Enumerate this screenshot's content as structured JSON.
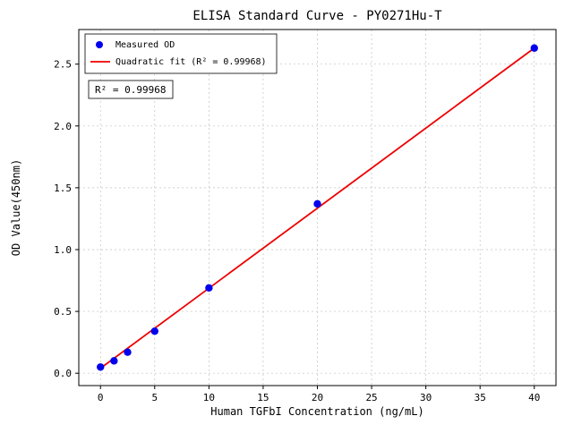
{
  "chart_data": {
    "type": "scatter",
    "title": "ELISA Standard Curve - PY0271Hu-T",
    "xlabel": "Human TGFbI Concentration (ng/mL)",
    "ylabel": "OD Value(450nm)",
    "series": [
      {
        "name": "Measured OD",
        "x": [
          0,
          1.25,
          2.5,
          5,
          10,
          20,
          40
        ],
        "y": [
          0.05,
          0.1,
          0.17,
          0.34,
          0.69,
          1.37,
          2.63
        ]
      }
    ],
    "fit_line": {
      "name": "Quadratic fit",
      "x": [
        0,
        40
      ],
      "y": [
        0.04,
        2.63
      ]
    },
    "xticks": [
      0,
      5,
      10,
      15,
      20,
      25,
      30,
      35,
      40
    ],
    "yticks": [
      0.0,
      0.5,
      1.0,
      1.5,
      2.0,
      2.5
    ],
    "xlim": [
      -2,
      42
    ],
    "ylim": [
      -0.1,
      2.78
    ],
    "grid": "dashed",
    "legend": {
      "position": "upper-left",
      "entries": [
        {
          "label": "Measured OD",
          "marker": "circle",
          "color": "#0000ee"
        },
        {
          "label": "Quadratic fit (R² = 0.99968)",
          "marker": "line",
          "color": "#ee0000"
        }
      ]
    },
    "annotation": "R² = 0.99968",
    "colors": {
      "points": "#0000ee",
      "fit": "#ee0000",
      "grid": "#c0c0c0",
      "axis": "#000000"
    }
  }
}
